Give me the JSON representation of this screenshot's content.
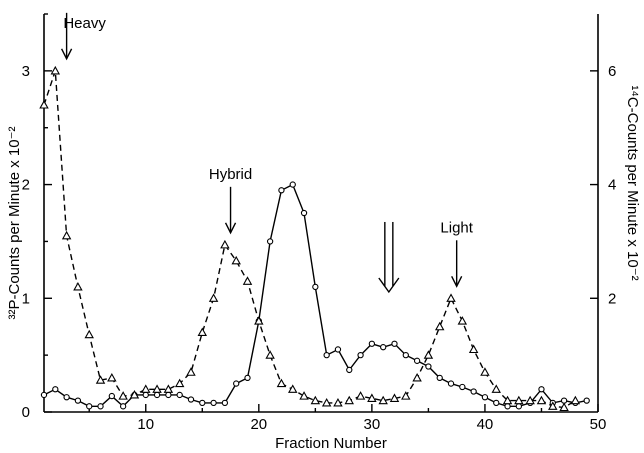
{
  "chart_data": {
    "type": "line",
    "xlabel": "Fraction Number",
    "ylabel_left": "³²P-Counts per Minute x 10⁻²",
    "ylabel_right": "¹⁴C-Counts per Minute x 10⁻²",
    "xlim": [
      1,
      50
    ],
    "ylim_left": [
      0,
      3.5
    ],
    "ylim_right": [
      0,
      7
    ],
    "x_ticks": [
      10,
      20,
      30,
      40,
      50
    ],
    "y_ticks_left": [
      0,
      1,
      2,
      3
    ],
    "y_ticks_right": [
      2,
      4,
      6
    ],
    "grid": false,
    "series": [
      {
        "axis": "right",
        "style": "solid",
        "marker": "circle",
        "x": [
          1,
          2,
          3,
          4,
          5,
          6,
          7,
          8,
          9,
          10,
          11,
          12,
          13,
          14,
          15,
          16,
          17,
          18,
          19,
          20,
          21,
          22,
          23,
          24,
          25,
          26,
          27,
          28,
          29,
          30,
          31,
          32,
          33,
          34,
          35,
          36,
          37,
          38,
          39,
          40,
          41,
          42,
          43,
          44,
          45,
          46,
          47,
          48,
          49
        ],
        "values": [
          0.3,
          0.4,
          0.26,
          0.2,
          0.1,
          0.1,
          0.28,
          0.1,
          0.3,
          0.3,
          0.3,
          0.3,
          0.3,
          0.22,
          0.16,
          0.16,
          0.16,
          0.5,
          0.6,
          1.6,
          3.0,
          3.9,
          4.0,
          3.5,
          2.2,
          1.0,
          1.1,
          0.74,
          1.0,
          1.2,
          1.14,
          1.2,
          1.0,
          0.9,
          0.8,
          0.6,
          0.5,
          0.44,
          0.36,
          0.26,
          0.16,
          0.1,
          0.1,
          0.16,
          0.4,
          0.16,
          0.2,
          0.16,
          0.2
        ]
      },
      {
        "axis": "left",
        "style": "dashed",
        "marker": "triangle",
        "x": [
          1,
          2,
          3,
          4,
          5,
          6,
          7,
          8,
          9,
          10,
          11,
          12,
          13,
          14,
          15,
          16,
          17,
          18,
          19,
          20,
          21,
          22,
          23,
          24,
          25,
          26,
          27,
          28,
          29,
          30,
          31,
          32,
          33,
          34,
          35,
          36,
          37,
          38,
          39,
          40,
          41,
          42,
          43,
          44,
          45,
          46,
          47,
          48
        ],
        "values": [
          2.7,
          3.0,
          1.55,
          1.1,
          0.68,
          0.28,
          0.3,
          0.14,
          0.15,
          0.2,
          0.2,
          0.2,
          0.25,
          0.35,
          0.7,
          1.0,
          1.47,
          1.33,
          1.15,
          0.8,
          0.5,
          0.25,
          0.2,
          0.14,
          0.1,
          0.08,
          0.08,
          0.1,
          0.14,
          0.12,
          0.1,
          0.12,
          0.14,
          0.3,
          0.5,
          0.75,
          1.0,
          0.8,
          0.55,
          0.35,
          0.2,
          0.1,
          0.1,
          0.1,
          0.1,
          0.05,
          0.04,
          0.1
        ]
      }
    ],
    "annotations": [
      {
        "label": "Heavy",
        "x": 3,
        "y_left": 3.0,
        "arrow": "single"
      },
      {
        "label": "Hybrid",
        "x": 17.5,
        "y_left": 1.47,
        "arrow": "single"
      },
      {
        "label": "",
        "x": 31.5,
        "y_left": 0.95,
        "arrow": "double"
      },
      {
        "label": "Light",
        "x": 37.5,
        "y_left": 1.0,
        "arrow": "single"
      }
    ]
  }
}
